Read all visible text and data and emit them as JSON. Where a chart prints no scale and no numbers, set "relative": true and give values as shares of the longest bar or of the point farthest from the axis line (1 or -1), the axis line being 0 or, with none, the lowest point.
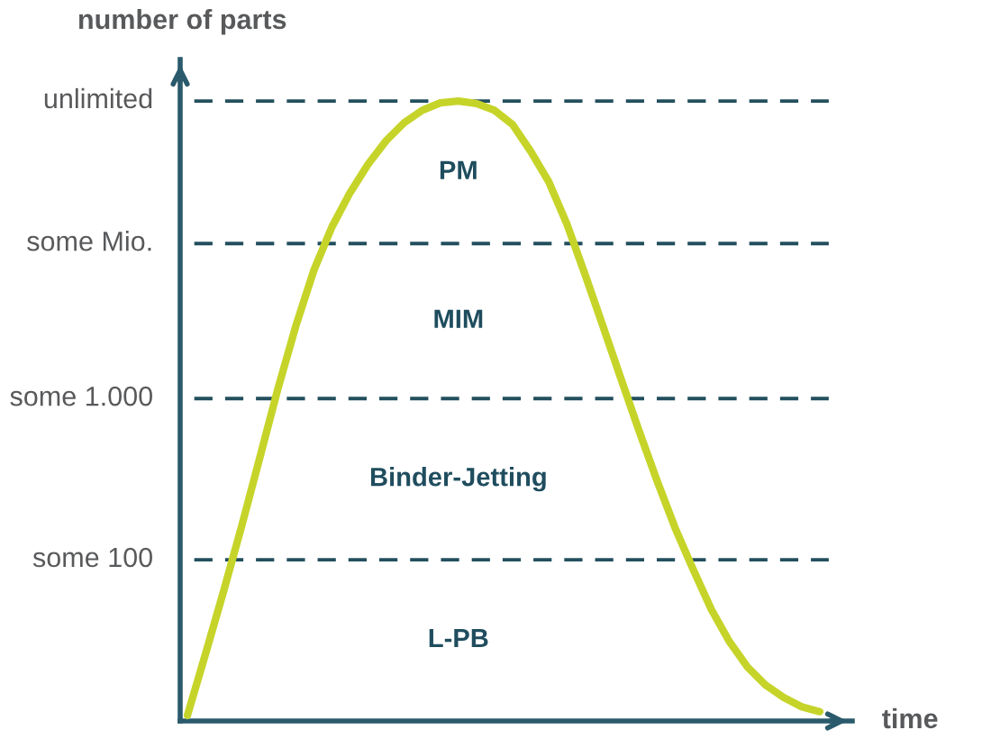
{
  "chart_data": {
    "type": "line",
    "relative": true,
    "ylabel": "number of parts",
    "xlabel": "time",
    "categories": [
      null,
      null,
      null,
      null,
      null,
      null,
      null,
      null,
      null,
      null,
      null,
      null,
      null,
      null,
      null,
      null,
      null,
      null,
      null,
      null,
      null,
      null,
      null,
      null,
      null,
      null,
      null,
      null,
      null,
      null,
      null,
      null,
      null,
      null,
      null,
      null
    ],
    "series": [
      {
        "color": "#c6d42a",
        "line_style": "solid",
        "values": [
          0.009,
          0.108,
          0.209,
          0.314,
          0.424,
          0.535,
          0.637,
          0.727,
          0.797,
          0.852,
          0.898,
          0.936,
          0.965,
          0.985,
          0.997,
          1.0,
          0.996,
          0.985,
          0.962,
          0.919,
          0.87,
          0.802,
          0.721,
          0.637,
          0.552,
          0.468,
          0.387,
          0.311,
          0.244,
          0.18,
          0.128,
          0.087,
          0.058,
          0.038,
          0.023,
          0.015
        ]
      }
    ],
    "ref_lines": [
      {
        "axis": "y",
        "value": 1.0,
        "label": "unlimited",
        "color": "#234f5e",
        "line_style": "dashed"
      },
      {
        "axis": "y",
        "value": 0.77,
        "label": "some Mio.",
        "color": "#234f5e",
        "line_style": "dashed"
      },
      {
        "axis": "y",
        "value": 0.52,
        "label": "some 1.000",
        "color": "#234f5e",
        "line_style": "dashed"
      },
      {
        "axis": "y",
        "value": 0.26,
        "label": "some 100",
        "color": "#234f5e",
        "line_style": "dashed"
      }
    ],
    "annotations": [
      "PM",
      "MIM",
      "Binder-Jetting",
      "L-PB"
    ]
  }
}
